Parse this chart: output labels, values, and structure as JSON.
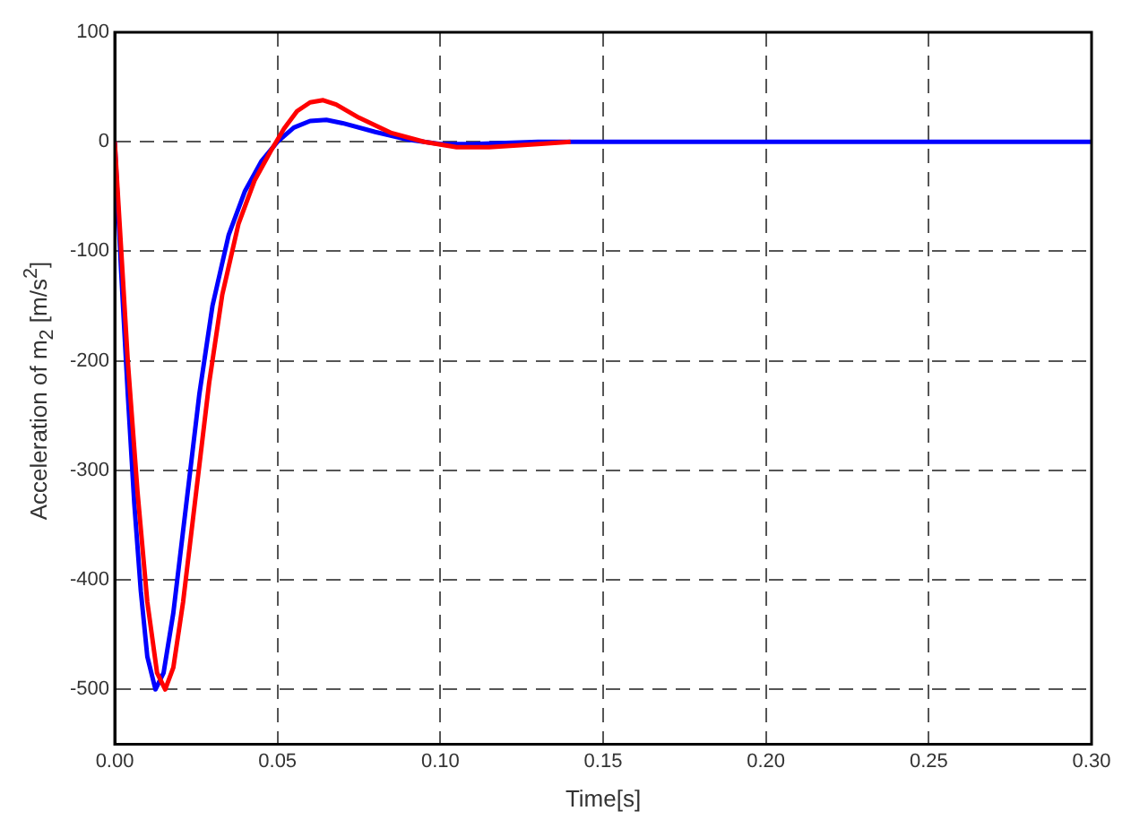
{
  "chart_data": {
    "type": "line",
    "xlabel": "Time[s]",
    "ylabel": "Acceleration of m$_{2}$ [m/s$^{2}$]",
    "xlim": [
      0,
      0.3
    ],
    "xticks": [
      {
        "value": 0,
        "label": "0.00"
      },
      {
        "value": 0.05,
        "label": "0.05"
      },
      {
        "value": 0.1,
        "label": "0.10"
      },
      {
        "value": 0.15,
        "label": "0.15"
      },
      {
        "value": 0.2,
        "label": "0.20"
      },
      {
        "value": 0.25,
        "label": "0.25"
      },
      {
        "value": 0.3,
        "label": "0.30"
      }
    ],
    "ylim": [
      -550,
      100
    ],
    "yticks": [
      -500,
      -400,
      -300,
      -200,
      -100,
      0,
      100
    ],
    "grid": true,
    "legend": false,
    "marker": "none",
    "series": [
      {
        "color": "#ff0000",
        "x": [
          0,
          0.002,
          0.004,
          0.007,
          0.01,
          0.013,
          0.0155,
          0.018,
          0.021,
          0.025,
          0.029,
          0.033,
          0.038,
          0.043,
          0.048,
          0.052,
          0.056,
          0.06,
          0.064,
          0.068,
          0.075,
          0.085,
          0.095,
          0.105,
          0.115,
          0.13,
          0.14
        ],
        "values": [
          0,
          -100,
          -200,
          -320,
          -420,
          -485,
          -500,
          -480,
          -420,
          -320,
          -220,
          -140,
          -75,
          -35,
          -8,
          12,
          28,
          36,
          38,
          34,
          22,
          8,
          0,
          -5,
          -5,
          -2,
          0
        ]
      },
      {
        "color": "#0000ff",
        "x": [
          0,
          0.002,
          0.004,
          0.006,
          0.008,
          0.01,
          0.0125,
          0.015,
          0.018,
          0.022,
          0.026,
          0.03,
          0.035,
          0.04,
          0.045,
          0.05,
          0.055,
          0.06,
          0.065,
          0.07,
          0.08,
          0.09,
          0.1,
          0.11,
          0.13,
          0.3
        ],
        "values": [
          0,
          -120,
          -230,
          -330,
          -410,
          -470,
          -500,
          -485,
          -430,
          -330,
          -230,
          -150,
          -85,
          -45,
          -18,
          0,
          13,
          19,
          20,
          17,
          9,
          2,
          -2,
          -2,
          0,
          0
        ]
      }
    ]
  }
}
